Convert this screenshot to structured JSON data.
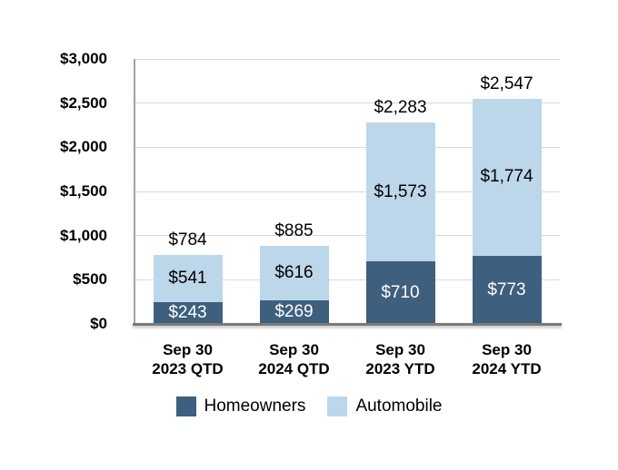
{
  "chart_data": {
    "type": "bar",
    "stacked": true,
    "title": "",
    "categories": [
      {
        "line1": "Sep 30",
        "line2": "2023 QTD"
      },
      {
        "line1": "Sep 30",
        "line2": "2024 QTD"
      },
      {
        "line1": "Sep 30",
        "line2": "2023 YTD"
      },
      {
        "line1": "Sep 30",
        "line2": "2024 YTD"
      }
    ],
    "series": [
      {
        "name": "Homeowners",
        "color": "#3e5f7e",
        "label_color": "#ffffff",
        "values": [
          243,
          269,
          710,
          773
        ],
        "labels": [
          "$243",
          "$269",
          "$710",
          "$773"
        ]
      },
      {
        "name": "Automobile",
        "color": "#bcd6ea",
        "label_color": "#000000",
        "values": [
          541,
          616,
          1573,
          1774
        ],
        "labels": [
          "$541",
          "$616",
          "$1,573",
          "$1,774"
        ]
      }
    ],
    "totals": [
      784,
      885,
      2283,
      2547
    ],
    "total_labels": [
      "$784",
      "$885",
      "$2,283",
      "$2,547"
    ],
    "y_axis": {
      "min": 0,
      "max": 3000,
      "tick_interval": 500,
      "tick_labels": [
        "$0",
        "$500",
        "$1,000",
        "$1,500",
        "$2,000",
        "$2,500",
        "$3,000"
      ]
    },
    "legend": {
      "position": "bottom",
      "entries": [
        {
          "label": "Homeowners",
          "color": "#3e5f7e"
        },
        {
          "label": "Automobile",
          "color": "#bcd6ea"
        }
      ]
    },
    "grid": true,
    "gridline_color": "#d9d9d9",
    "axis_line_color": "#7a7a7a"
  }
}
